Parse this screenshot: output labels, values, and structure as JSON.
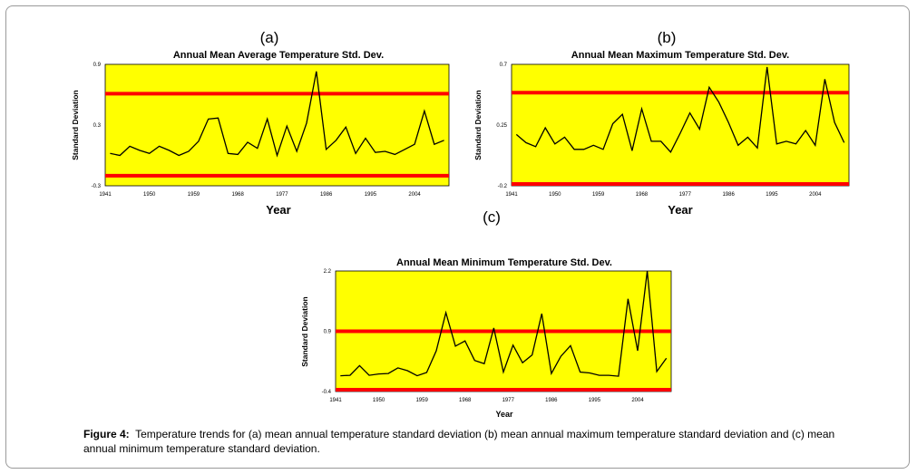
{
  "figure": {
    "caption_label": "Figure 4:",
    "caption_text": "Temperature trends for (a) mean annual temperature standard deviation (b) mean annual maximum temperature standard deviation and (c) mean annual minimum temperature standard deviation."
  },
  "colors": {
    "plot_background": "#ffff00",
    "threshold_line": "#ff0000",
    "series_line": "#000000"
  },
  "chart_data": [
    {
      "panel_letter": "(a)",
      "type": "line",
      "title": "Annual Mean Average Temperature Std. Dev.",
      "xlabel": "Year",
      "ylabel": "Standard Deviation",
      "x_tick_labels": [
        "1941",
        "1950",
        "1959",
        "1968",
        "1977",
        "1986",
        "1995",
        "2004"
      ],
      "x_ticks": [
        1941,
        1950,
        1959,
        1968,
        1977,
        1986,
        1995,
        2004
      ],
      "xlim": [
        1941,
        2011
      ],
      "y_tick_labels": [
        "-0.3",
        "0.3",
        "0.9"
      ],
      "ylim": [
        -0.3,
        0.9
      ],
      "grid": false,
      "threshold_lines": [
        0.61,
        -0.2
      ],
      "series": [
        {
          "x": [
            1942,
            1944,
            1946,
            1948,
            1950,
            1952,
            1954,
            1956,
            1958,
            1960,
            1962,
            1964,
            1966,
            1968,
            1970,
            1972,
            1974,
            1976,
            1978,
            1980,
            1982,
            1984,
            1986,
            1988,
            1990,
            1992,
            1994,
            1996,
            1998,
            2000,
            2002,
            2004,
            2006,
            2008,
            2010
          ],
          "values": [
            0.02,
            0.0,
            0.09,
            0.05,
            0.02,
            0.09,
            0.05,
            0.0,
            0.04,
            0.14,
            0.36,
            0.37,
            0.02,
            0.01,
            0.13,
            0.07,
            0.36,
            0.0,
            0.29,
            0.04,
            0.32,
            0.83,
            0.06,
            0.15,
            0.28,
            0.02,
            0.17,
            0.03,
            0.04,
            0.01,
            0.06,
            0.11,
            0.44,
            0.11,
            0.15
          ]
        }
      ]
    },
    {
      "panel_letter": "(b)",
      "type": "line",
      "title": "Annual Mean Maximum Temperature Std. Dev.",
      "xlabel": "Year",
      "ylabel": "Standard Deviation",
      "x_tick_labels": [
        "1941",
        "1950",
        "1959",
        "1968",
        "1977",
        "1986",
        "1995",
        "2004"
      ],
      "x_ticks": [
        1941,
        1950,
        1959,
        1968,
        1977,
        1986,
        1995,
        2004
      ],
      "xlim": [
        1941,
        2011
      ],
      "y_tick_labels": [
        "-0.2",
        "0.25",
        "0.7"
      ],
      "ylim": [
        -0.2,
        0.7
      ],
      "grid": false,
      "threshold_lines": [
        0.49,
        -0.19
      ],
      "series": [
        {
          "x": [
            1942,
            1944,
            1946,
            1948,
            1950,
            1952,
            1954,
            1956,
            1958,
            1960,
            1962,
            1964,
            1966,
            1968,
            1970,
            1972,
            1974,
            1976,
            1978,
            1980,
            1982,
            1984,
            1986,
            1988,
            1990,
            1992,
            1994,
            1996,
            1998,
            2000,
            2002,
            2004,
            2006,
            2008,
            2010
          ],
          "values": [
            0.18,
            0.12,
            0.09,
            0.23,
            0.11,
            0.16,
            0.07,
            0.07,
            0.1,
            0.07,
            0.26,
            0.33,
            0.06,
            0.37,
            0.13,
            0.13,
            0.05,
            0.19,
            0.34,
            0.22,
            0.53,
            0.42,
            0.27,
            0.1,
            0.16,
            0.08,
            0.68,
            0.11,
            0.13,
            0.11,
            0.21,
            0.1,
            0.59,
            0.27,
            0.12
          ]
        }
      ]
    },
    {
      "panel_letter": "(c)",
      "type": "line",
      "title": "Annual Mean Minimum Temperature Std. Dev.",
      "xlabel": "Year",
      "ylabel": "Standard Deviation",
      "x_tick_labels": [
        "1941",
        "1950",
        "1959",
        "1968",
        "1977",
        "1986",
        "1995",
        "2004"
      ],
      "x_ticks": [
        1941,
        1950,
        1959,
        1968,
        1977,
        1986,
        1995,
        2004
      ],
      "xlim": [
        1941,
        2011
      ],
      "y_tick_labels": [
        "-0.4",
        "0.9",
        "2.2"
      ],
      "ylim": [
        -0.4,
        2.2
      ],
      "grid": false,
      "threshold_lines": [
        0.9,
        -0.4
      ],
      "series": [
        {
          "x": [
            1942,
            1944,
            1946,
            1948,
            1950,
            1952,
            1954,
            1956,
            1958,
            1960,
            1962,
            1964,
            1966,
            1968,
            1970,
            1972,
            1974,
            1976,
            1978,
            1980,
            1982,
            1984,
            1986,
            1988,
            1990,
            1992,
            1994,
            1996,
            1998,
            2000,
            2002,
            2004,
            2006,
            2008,
            2010
          ],
          "values": [
            -0.06,
            -0.05,
            0.16,
            -0.05,
            -0.02,
            -0.01,
            0.11,
            0.05,
            -0.06,
            0.01,
            0.48,
            1.3,
            0.58,
            0.69,
            0.27,
            0.2,
            0.97,
            0.02,
            0.6,
            0.22,
            0.39,
            1.28,
            -0.01,
            0.36,
            0.59,
            0.02,
            0.0,
            -0.05,
            -0.05,
            -0.07,
            1.6,
            0.48,
            2.2,
            0.03,
            0.32
          ]
        }
      ]
    }
  ]
}
